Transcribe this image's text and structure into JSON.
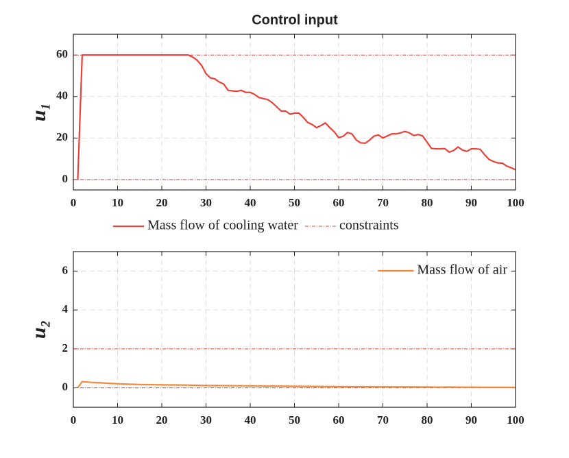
{
  "chart_data": [
    {
      "type": "line",
      "title": "Control input",
      "y_label": "u₁",
      "x": [
        1,
        2,
        3,
        4,
        5,
        6,
        7,
        8,
        9,
        10,
        11,
        12,
        13,
        14,
        15,
        16,
        17,
        18,
        19,
        20,
        21,
        22,
        23,
        24,
        25,
        26,
        27,
        28,
        29,
        30,
        31,
        32,
        33,
        34,
        35,
        36,
        37,
        38,
        39,
        40,
        41,
        42,
        43,
        44,
        45,
        46,
        47,
        48,
        49,
        50,
        51,
        52,
        53,
        54,
        55,
        56,
        57,
        58,
        59,
        60,
        61,
        62,
        63,
        64,
        65,
        66,
        67,
        68,
        69,
        70,
        71,
        72,
        73,
        74,
        75,
        76,
        77,
        78,
        79,
        80,
        81,
        82,
        83,
        84,
        85,
        86,
        87,
        88,
        89,
        90,
        91,
        92,
        93,
        94,
        95,
        96,
        97,
        98,
        99,
        100
      ],
      "series": [
        {
          "name": "Mass flow of cooling water",
          "color": "#e8413a",
          "values": [
            0,
            60,
            60,
            60,
            60,
            60,
            60,
            60,
            60,
            60,
            60,
            60,
            60,
            60,
            60,
            60,
            60,
            60,
            60,
            60,
            60,
            60,
            60,
            60,
            60,
            60,
            59,
            57.5,
            55,
            51,
            49,
            48.5,
            47,
            46,
            43,
            42.7,
            42.5,
            43,
            42,
            42,
            41,
            39.5,
            39,
            38.5,
            37,
            35,
            33,
            33,
            31.5,
            32,
            32,
            30,
            27.5,
            26.5,
            25,
            26,
            27.3,
            25,
            23,
            20.2,
            20.8,
            22.7,
            22,
            19,
            17.7,
            17.5,
            19,
            21,
            21.5,
            20,
            21,
            22,
            22,
            22.5,
            23.2,
            22.5,
            21.2,
            21.7,
            21,
            18,
            15,
            14.8,
            14.8,
            14.9,
            13.2,
            14,
            15.7,
            14.2,
            13.6,
            14.8,
            14.8,
            14.6,
            12,
            9.7,
            8.7,
            8,
            7.9,
            6.5,
            5.7,
            4.7
          ]
        }
      ],
      "constraints": {
        "name": "constraints",
        "color": "#e8413a",
        "values": [
          0,
          60
        ]
      },
      "legend": "below",
      "xlim": [
        0,
        100
      ],
      "xticks": [
        0,
        10,
        20,
        30,
        40,
        50,
        60,
        70,
        80,
        90,
        100
      ],
      "ylim": [
        -5,
        70
      ],
      "yticks": [
        0,
        20,
        40,
        60
      ],
      "grid": true
    },
    {
      "type": "line",
      "y_label": "u₂",
      "x": [
        1,
        2,
        3,
        4,
        5,
        6,
        8,
        10,
        12,
        15,
        20,
        25,
        30,
        35,
        40,
        45,
        50,
        55,
        60,
        65,
        70,
        75,
        80,
        85,
        90,
        95,
        100
      ],
      "series": [
        {
          "name": "Mass flow of air",
          "color": "#f5883a",
          "values": [
            0,
            0.32,
            0.3,
            0.28,
            0.27,
            0.26,
            0.23,
            0.21,
            0.19,
            0.17,
            0.15,
            0.14,
            0.12,
            0.11,
            0.1,
            0.09,
            0.08,
            0.07,
            0.06,
            0.055,
            0.05,
            0.045,
            0.04,
            0.035,
            0.03,
            0.025,
            0.02
          ]
        }
      ],
      "constraints": {
        "color": "#e8413a",
        "values": [
          0,
          2
        ]
      },
      "legend": "upper right",
      "xlim": [
        0,
        100
      ],
      "xticks": [
        0,
        10,
        20,
        30,
        40,
        50,
        60,
        70,
        80,
        90,
        100
      ],
      "ylim": [
        -1,
        7
      ],
      "yticks": [
        0,
        2,
        4,
        6
      ],
      "grid": true
    }
  ]
}
